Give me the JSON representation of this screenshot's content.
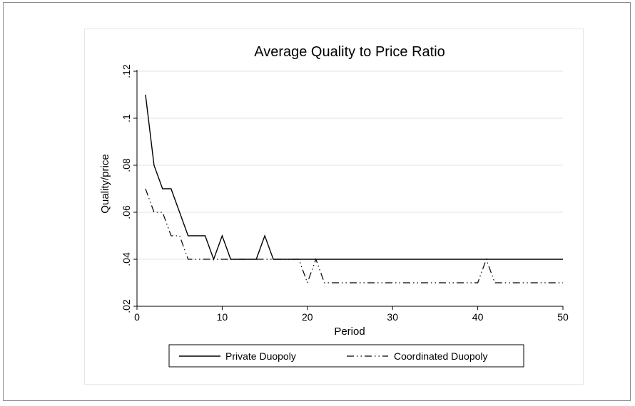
{
  "chart_data": {
    "type": "line",
    "title": "Average Quality to Price Ratio",
    "xlabel": "Period",
    "ylabel": "Quality/price",
    "xlim": [
      0,
      50
    ],
    "ylim": [
      0.02,
      0.12
    ],
    "xticks": [
      0,
      10,
      20,
      30,
      40,
      50
    ],
    "xtick_labels": [
      "0",
      "10",
      "20",
      "30",
      "40",
      "50"
    ],
    "yticks": [
      0.02,
      0.04,
      0.06,
      0.08,
      0.1,
      0.12
    ],
    "ytick_labels": [
      ".02",
      ".04",
      ".06",
      ".08",
      ".1",
      ".12"
    ],
    "grid": true,
    "legend_position": "bottom",
    "series": [
      {
        "name": "Private Duopoly",
        "style": "solid",
        "color": "#000000",
        "x": [
          1,
          2,
          3,
          4,
          5,
          6,
          7,
          8,
          9,
          10,
          11,
          12,
          13,
          14,
          15,
          16,
          17,
          18,
          19,
          20,
          21,
          22,
          23,
          24,
          25,
          26,
          27,
          28,
          29,
          30,
          31,
          32,
          33,
          34,
          35,
          36,
          37,
          38,
          39,
          40,
          41,
          42,
          43,
          44,
          45,
          46,
          47,
          48,
          49,
          50
        ],
        "values": [
          0.11,
          0.08,
          0.07,
          0.07,
          0.06,
          0.05,
          0.05,
          0.05,
          0.04,
          0.05,
          0.04,
          0.04,
          0.04,
          0.04,
          0.05,
          0.04,
          0.04,
          0.04,
          0.04,
          0.04,
          0.04,
          0.04,
          0.04,
          0.04,
          0.04,
          0.04,
          0.04,
          0.04,
          0.04,
          0.04,
          0.04,
          0.04,
          0.04,
          0.04,
          0.04,
          0.04,
          0.04,
          0.04,
          0.04,
          0.04,
          0.04,
          0.04,
          0.04,
          0.04,
          0.04,
          0.04,
          0.04,
          0.04,
          0.04,
          0.04
        ]
      },
      {
        "name": "Coordinated Duopoly",
        "style": "dash-dot",
        "color": "#000000",
        "x": [
          1,
          2,
          3,
          4,
          5,
          6,
          7,
          8,
          9,
          10,
          11,
          12,
          13,
          14,
          15,
          16,
          17,
          18,
          19,
          20,
          21,
          22,
          23,
          24,
          25,
          26,
          27,
          28,
          29,
          30,
          31,
          32,
          33,
          34,
          35,
          36,
          37,
          38,
          39,
          40,
          41,
          42,
          43,
          44,
          45,
          46,
          47,
          48,
          49,
          50
        ],
        "values": [
          0.07,
          0.06,
          0.06,
          0.05,
          0.05,
          0.04,
          0.04,
          0.04,
          0.04,
          0.04,
          0.04,
          0.04,
          0.04,
          0.04,
          0.04,
          0.04,
          0.04,
          0.04,
          0.04,
          0.03,
          0.04,
          0.03,
          0.03,
          0.03,
          0.03,
          0.03,
          0.03,
          0.03,
          0.03,
          0.03,
          0.03,
          0.03,
          0.03,
          0.03,
          0.03,
          0.03,
          0.03,
          0.03,
          0.03,
          0.03,
          0.04,
          0.03,
          0.03,
          0.03,
          0.03,
          0.03,
          0.03,
          0.03,
          0.03,
          0.03
        ]
      }
    ]
  }
}
